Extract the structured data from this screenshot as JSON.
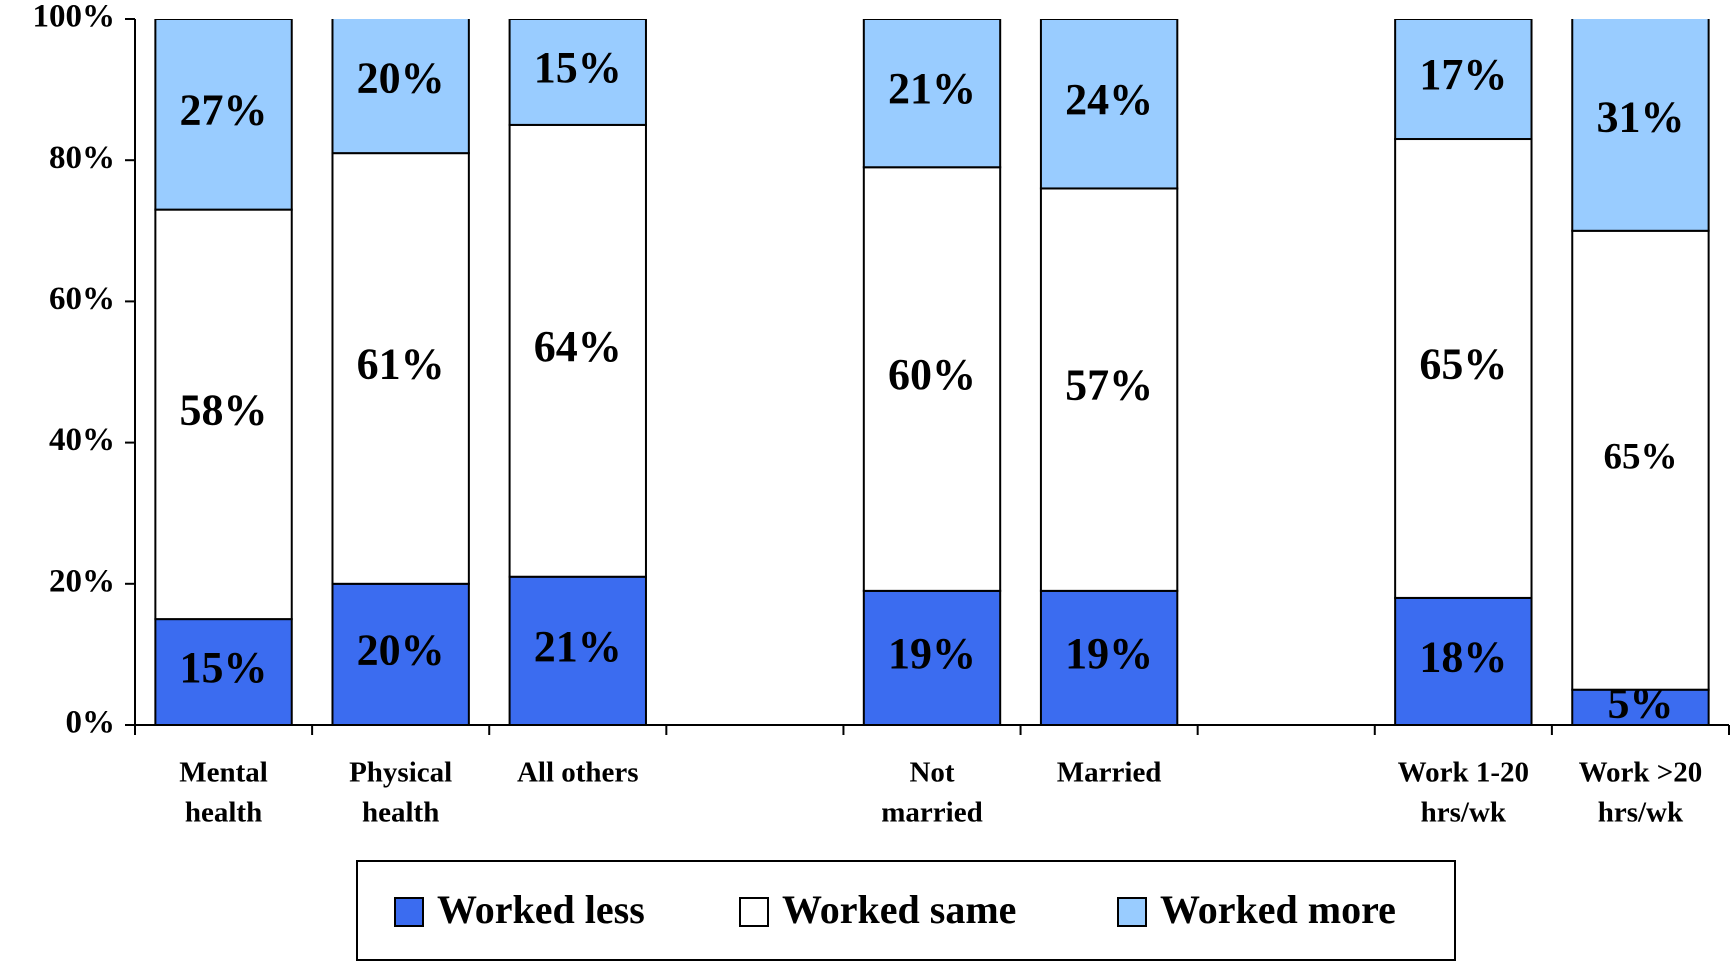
{
  "chart_data": {
    "type": "stacked_bar",
    "categories": [
      [
        "Mental",
        "health"
      ],
      [
        "Physical",
        "health"
      ],
      [
        "All others"
      ],
      null,
      [
        "Not",
        "married"
      ],
      [
        "Married"
      ],
      null,
      [
        "Work 1-20",
        "hrs/wk"
      ],
      [
        "Work >20",
        "hrs/wk"
      ]
    ],
    "series": [
      {
        "name": "Worked less",
        "color": "#3b6cf0",
        "values": [
          15,
          20,
          21,
          null,
          19,
          19,
          null,
          18,
          5
        ],
        "value_labels": [
          "15%",
          "20%",
          "21%",
          null,
          "19%",
          "19%",
          null,
          "18%",
          "5%"
        ]
      },
      {
        "name": "Worked same",
        "color": "#ffffff",
        "values": [
          58,
          61,
          64,
          null,
          60,
          57,
          null,
          65,
          65
        ],
        "value_labels": [
          "58%",
          "61%",
          "64%",
          null,
          "60%",
          "57%",
          null,
          "65%",
          "65%"
        ]
      },
      {
        "name": "Worked more",
        "color": "#99ccff",
        "values": [
          27,
          20,
          15,
          null,
          21,
          24,
          null,
          17,
          31
        ],
        "value_labels": [
          "27%",
          "20%",
          "15%",
          null,
          "21%",
          "24%",
          null,
          "17%",
          "31%"
        ]
      }
    ],
    "ylim": [
      0,
      100
    ],
    "yticks": [
      {
        "value": 0,
        "label": "0%"
      },
      {
        "value": 20,
        "label": "20%"
      },
      {
        "value": 40,
        "label": "40%"
      },
      {
        "value": 60,
        "label": "60%"
      },
      {
        "value": 80,
        "label": "80%"
      },
      {
        "value": 100,
        "label": "100%"
      }
    ],
    "grid": false,
    "legend": "bottom"
  }
}
